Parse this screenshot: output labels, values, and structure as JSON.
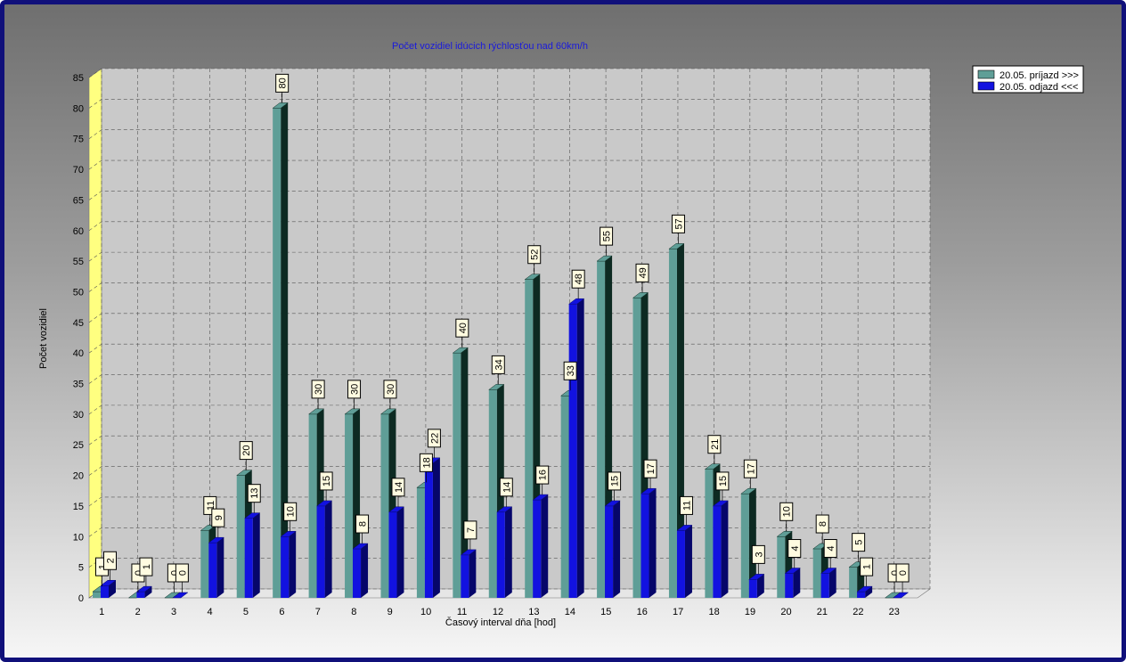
{
  "chart_data": {
    "type": "bar",
    "title": "Počet vozidiel idúcich rýchlosťou nad 60km/h",
    "xlabel": "Časový interval dňa [hod]",
    "ylabel": "Počet vozidiel",
    "ylim": [
      0,
      85
    ],
    "yticks": [
      "0",
      "5",
      "10",
      "15",
      "20",
      "25",
      "30",
      "35",
      "40",
      "45",
      "50",
      "55",
      "60",
      "65",
      "70",
      "75",
      "80",
      "85"
    ],
    "categories": [
      "1",
      "2",
      "3",
      "4",
      "5",
      "6",
      "7",
      "8",
      "9",
      "10",
      "11",
      "12",
      "13",
      "14",
      "15",
      "16",
      "17",
      "18",
      "19",
      "20",
      "21",
      "22",
      "23"
    ],
    "series": [
      {
        "name": "20.05.  príjazd >>>",
        "color": "#5f9e97",
        "dark": "#0d2a22",
        "values": [
          1,
          0,
          0,
          11,
          20,
          80,
          30,
          30,
          30,
          18,
          40,
          34,
          52,
          33,
          55,
          49,
          57,
          21,
          17,
          10,
          8,
          5,
          0
        ]
      },
      {
        "name": "20.05.  odjazd <<<",
        "color": "#1212e0",
        "dark": "#06066a",
        "values": [
          2,
          1,
          0,
          9,
          13,
          10,
          15,
          8,
          14,
          22,
          7,
          14,
          16,
          48,
          15,
          17,
          11,
          15,
          3,
          4,
          4,
          1,
          0
        ]
      }
    ],
    "grid": true,
    "legend_position": "top-right"
  }
}
